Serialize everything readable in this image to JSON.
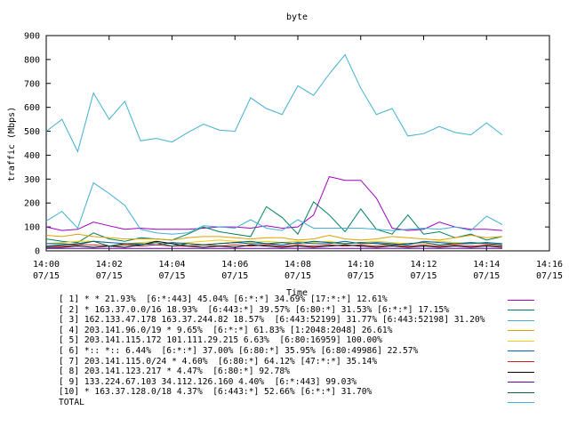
{
  "chart_data": {
    "type": "line",
    "title": "byte",
    "xlabel": "Time",
    "ylabel": "traffic (Mbps)",
    "ylim": [
      0,
      900
    ],
    "yticks": [
      "0",
      "100",
      "200",
      "300",
      "400",
      "500",
      "600",
      "700",
      "800",
      "900"
    ],
    "xlim": [
      "14:00",
      "14:16"
    ],
    "xticks": [
      {
        "time": "14:00",
        "date": "07/15"
      },
      {
        "time": "14:02",
        "date": "07/15"
      },
      {
        "time": "14:04",
        "date": "07/15"
      },
      {
        "time": "14:06",
        "date": "07/15"
      },
      {
        "time": "14:08",
        "date": "07/15"
      },
      {
        "time": "14:10",
        "date": "07/15"
      },
      {
        "time": "14:12",
        "date": "07/15"
      },
      {
        "time": "14:14",
        "date": "07/15"
      },
      {
        "time": "14:16",
        "date": "07/15"
      }
    ],
    "grid": false,
    "legend_position": "bottom",
    "x": [
      "14:00",
      "14:00:30",
      "14:01",
      "14:01:30",
      "14:02",
      "14:02:30",
      "14:03",
      "14:03:30",
      "14:04",
      "14:04:30",
      "14:05",
      "14:05:30",
      "14:06",
      "14:06:30",
      "14:07",
      "14:07:30",
      "14:08",
      "14:08:30",
      "14:09",
      "14:09:30",
      "14:10",
      "14:10:30",
      "14:11",
      "14:11:30",
      "14:12",
      "14:12:30",
      "14:13",
      "14:13:30",
      "14:14",
      "14:14:30"
    ],
    "series": [
      {
        "name": "[ 1] * * 21.93%  [6:*:443] 45.04% [6:*:*] 34.69% [17:*:*] 12.61%",
        "color": "#a000c0",
        "values": [
          100,
          85,
          90,
          120,
          105,
          90,
          95,
          90,
          90,
          90,
          95,
          100,
          100,
          95,
          105,
          95,
          100,
          150,
          310,
          295,
          295,
          220,
          95,
          85,
          90,
          120,
          100,
          90,
          90,
          85
        ]
      },
      {
        "name": "[ 2] * 163.37.0.0/16 18.93%  [6:443:*] 39.57% [6:80:*] 31.53% [6:*:*] 17.15%",
        "color": "#008060",
        "values": [
          50,
          40,
          35,
          75,
          50,
          40,
          55,
          50,
          45,
          70,
          100,
          80,
          70,
          60,
          185,
          140,
          70,
          205,
          150,
          80,
          175,
          90,
          70,
          150,
          70,
          80,
          55,
          70,
          45,
          60
        ]
      },
      {
        "name": "[ 3] 162.133.47.178 163.37.244.82 18.57%  [6:443:52199] 31.77% [6:443:52198] 31.20%",
        "color": "#40b0d0",
        "values": [
          125,
          165,
          95,
          285,
          240,
          190,
          90,
          75,
          70,
          75,
          105,
          100,
          95,
          130,
          95,
          85,
          130,
          95,
          95,
          95,
          95,
          90,
          85,
          90,
          95,
          90,
          100,
          85,
          145,
          110
        ]
      },
      {
        "name": "[ 4] 203.141.96.0/19 * 9.65%  [6:*:*] 61.83% [1:2048:2048] 26.61%",
        "color": "#e0a000",
        "values": [
          65,
          60,
          70,
          60,
          55,
          50,
          50,
          50,
          45,
          55,
          60,
          60,
          55,
          50,
          55,
          55,
          45,
          50,
          65,
          50,
          45,
          50,
          60,
          55,
          50,
          45,
          55,
          65,
          55,
          60
        ]
      },
      {
        "name": "[ 5] 203.141.115.172 101.111.29.215 6.63%  [6:80:16959] 100.00%",
        "color": "#f0d000",
        "values": [
          30,
          35,
          40,
          40,
          35,
          30,
          35,
          40,
          30,
          35,
          40,
          45,
          40,
          35,
          40,
          35,
          40,
          35,
          40,
          30,
          35,
          40,
          35,
          30,
          35,
          40,
          35,
          30,
          35,
          30
        ]
      },
      {
        "name": "[ 6] *:: *:: 6.44%  [6:*:*] 37.00% [6:80:*] 35.95% [6:80:49986] 22.57%",
        "color": "#0060c0",
        "values": [
          30,
          30,
          25,
          40,
          35,
          30,
          30,
          25,
          35,
          30,
          25,
          30,
          35,
          30,
          30,
          25,
          35,
          30,
          30,
          40,
          30,
          35,
          30,
          25,
          40,
          35,
          30,
          30,
          35,
          30
        ]
      },
      {
        "name": "[ 7] 203.141.115.0/24 * 4.60%  [6:80:*] 64.12% [47:*:*] 35.14%",
        "color": "#d02020",
        "values": [
          20,
          20,
          25,
          25,
          20,
          25,
          20,
          25,
          20,
          20,
          25,
          20,
          25,
          20,
          25,
          20,
          25,
          20,
          25,
          20,
          25,
          20,
          25,
          20,
          25,
          20,
          25,
          20,
          25,
          20
        ]
      },
      {
        "name": "[ 8] 203.141.123.217 * 4.47%  [6:80:*] 92.78%",
        "color": "#000000",
        "values": [
          15,
          15,
          20,
          15,
          20,
          15,
          25,
          40,
          30,
          20,
          15,
          20,
          15,
          25,
          20,
          15,
          20,
          15,
          20,
          25,
          20,
          15,
          20,
          15,
          20,
          15,
          20,
          15,
          20,
          15
        ]
      },
      {
        "name": "[ 9] 133.224.67.103 34.112.126.160 4.40%  [6:*:443] 99.03%",
        "color": "#6000a0",
        "values": [
          10,
          10,
          10,
          10,
          10,
          10,
          10,
          10,
          10,
          10,
          10,
          10,
          10,
          10,
          10,
          10,
          10,
          10,
          10,
          10,
          10,
          10,
          10,
          10,
          10,
          10,
          10,
          10,
          10,
          10
        ]
      },
      {
        "name": "[10] * 163.37.128.0/18 4.37%  [6:443:*] 52.66% [6:*:*] 31.70%",
        "color": "#006040",
        "values": [
          20,
          25,
          30,
          40,
          20,
          30,
          25,
          35,
          20,
          30,
          25,
          30,
          35,
          40,
          30,
          35,
          30,
          40,
          35,
          30,
          35,
          30,
          25,
          30,
          35,
          25,
          30,
          35,
          30,
          25
        ]
      },
      {
        "name": "TOTAL",
        "color": "#40b0d0",
        "values": [
          500,
          550,
          415,
          660,
          550,
          625,
          460,
          470,
          455,
          495,
          530,
          505,
          500,
          640,
          595,
          570,
          690,
          650,
          740,
          820,
          680,
          570,
          595,
          480,
          490,
          520,
          495,
          485,
          535,
          485
        ]
      }
    ]
  }
}
